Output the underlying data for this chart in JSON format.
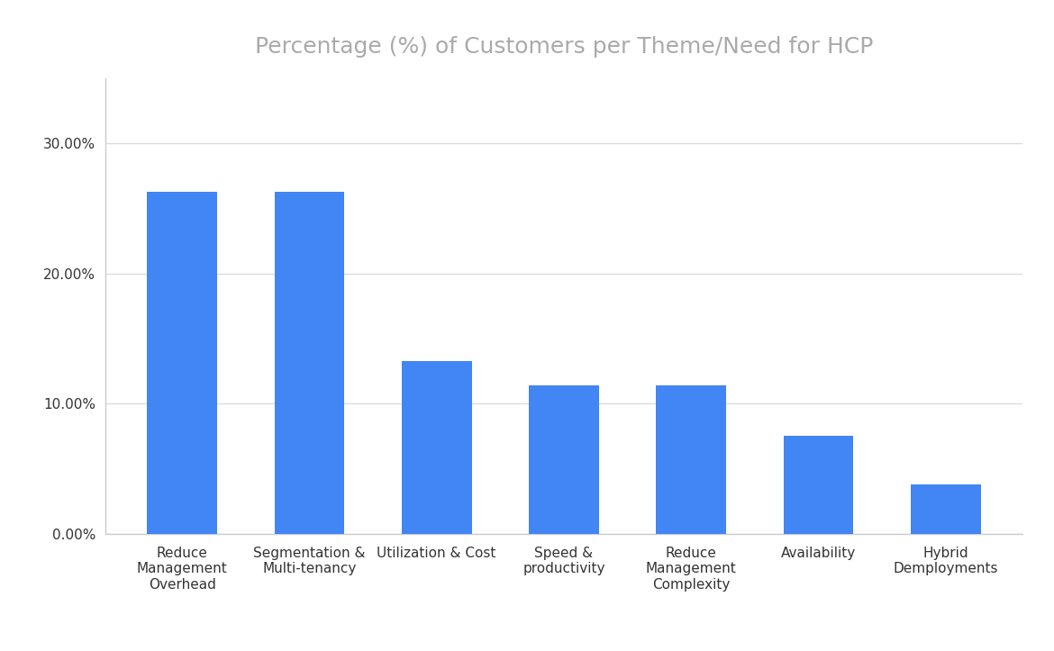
{
  "title": "Percentage (%) of Customers per Theme/Need for HCP",
  "categories": [
    "Reduce\nManagement\nOverhead",
    "Segmentation &\nMulti-tenancy",
    "Utilization & Cost",
    "Speed &\nproductivity",
    "Reduce\nManagement\nComplexity",
    "Availability",
    "Hybrid\nDemployments"
  ],
  "values": [
    26.3,
    26.3,
    13.3,
    11.4,
    11.4,
    7.5,
    3.8
  ],
  "bar_color": "#4285F4",
  "background_color": "#ffffff",
  "ylim": [
    0,
    35
  ],
  "yticks": [
    0.0,
    10.0,
    20.0,
    30.0
  ],
  "title_color": "#aaaaaa",
  "title_fontsize": 18,
  "tick_color": "#333333",
  "grid_color": "#dddddd",
  "spine_color": "#cccccc"
}
